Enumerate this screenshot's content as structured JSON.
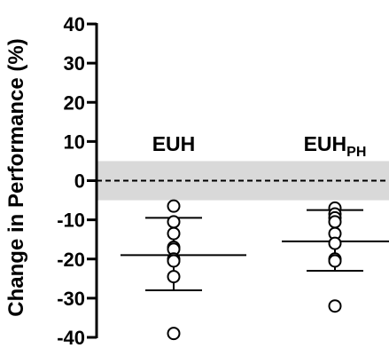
{
  "chart_data": {
    "type": "scatter",
    "ylabel": "Change in Performance (%)",
    "ylim": [
      -40,
      40
    ],
    "yticks": [
      "40",
      "30",
      "20",
      "10",
      "0",
      "-10",
      "-20",
      "-30",
      "-40"
    ],
    "yticks_values": [
      40,
      30,
      20,
      10,
      0,
      -10,
      -20,
      -30,
      -40
    ],
    "reference_line": 0,
    "shaded_band": [
      -5,
      5
    ],
    "shaded_band_color": "#d9d9d9",
    "groups": [
      {
        "label": "EUH",
        "label_sub": "",
        "points": [
          -6.5,
          -10.5,
          -13.5,
          -17,
          -17.5,
          -20,
          -20.5,
          -24.5,
          -39
        ],
        "mean": -19,
        "sd_upper": -9.5,
        "sd_lower": -28
      },
      {
        "label": "EUH",
        "label_sub": "PH",
        "points": [
          -7,
          -8.5,
          -9.5,
          -10.5,
          -13.5,
          -16,
          -20,
          -20.5,
          -32
        ],
        "mean": -15.5,
        "sd_upper": -7.5,
        "sd_lower": -23
      }
    ]
  }
}
